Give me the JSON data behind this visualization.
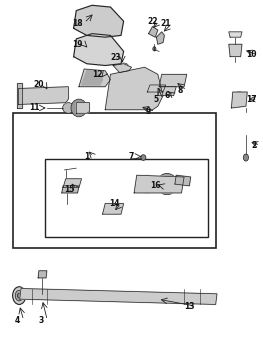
{
  "bg_color": "#ffffff",
  "line_color": "#222222",
  "label_color": "#111111",
  "fig_width": 2.63,
  "fig_height": 3.54,
  "dpi": 100
}
